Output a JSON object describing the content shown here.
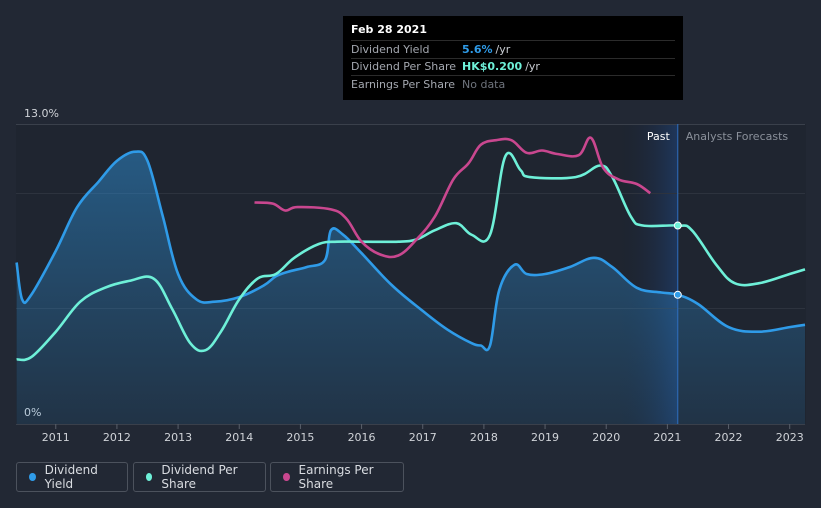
{
  "tooltip": {
    "date": "Feb 28 2021",
    "rows": [
      {
        "label": "Dividend Yield",
        "value": "5.6%",
        "unit": "/yr",
        "color": "#2f9be8"
      },
      {
        "label": "Dividend Per Share",
        "value": "HK$0.200",
        "unit": "/yr",
        "color": "#6ef0d8"
      },
      {
        "label": "Earnings Per Share",
        "value": "No data",
        "unit": "",
        "color": "#6f747d"
      }
    ]
  },
  "legend": [
    {
      "label": "Dividend Yield",
      "color": "#2f9be8"
    },
    {
      "label": "Dividend Per Share",
      "color": "#6ef0d8"
    },
    {
      "label": "Earnings Per Share",
      "color": "#c9478f"
    }
  ],
  "chart_data": {
    "type": "line",
    "y_top_label": "13.0%",
    "y_bottom_label": "0%",
    "ylim": [
      0,
      13
    ],
    "xlim": [
      2010.35,
      2023.25
    ],
    "x_ticks": [
      "2011",
      "2012",
      "2013",
      "2014",
      "2015",
      "2016",
      "2017",
      "2018",
      "2019",
      "2020",
      "2021",
      "2022",
      "2023"
    ],
    "past_label": "Past",
    "forecast_label": "Analysts Forecasts",
    "forecast_start": 2021.17,
    "series": [
      {
        "name": "Dividend Yield",
        "color": "#2f9be8",
        "filled": true,
        "points": [
          [
            2010.36,
            7.0
          ],
          [
            2010.45,
            5.4
          ],
          [
            2010.6,
            5.6
          ],
          [
            2011.0,
            7.5
          ],
          [
            2011.35,
            9.4
          ],
          [
            2011.7,
            10.5
          ],
          [
            2012.0,
            11.4
          ],
          [
            2012.3,
            11.8
          ],
          [
            2012.5,
            11.4
          ],
          [
            2012.75,
            9.0
          ],
          [
            2013.0,
            6.5
          ],
          [
            2013.3,
            5.4
          ],
          [
            2013.6,
            5.3
          ],
          [
            2014.0,
            5.5
          ],
          [
            2014.4,
            6.0
          ],
          [
            2014.6,
            6.4
          ],
          [
            2014.8,
            6.6
          ],
          [
            2015.1,
            6.8
          ],
          [
            2015.4,
            7.1
          ],
          [
            2015.5,
            8.4
          ],
          [
            2015.7,
            8.2
          ],
          [
            2016.0,
            7.4
          ],
          [
            2016.5,
            6.0
          ],
          [
            2017.0,
            4.9
          ],
          [
            2017.4,
            4.1
          ],
          [
            2017.8,
            3.5
          ],
          [
            2017.95,
            3.4
          ],
          [
            2018.1,
            3.4
          ],
          [
            2018.25,
            5.8
          ],
          [
            2018.5,
            6.9
          ],
          [
            2018.7,
            6.5
          ],
          [
            2019.0,
            6.5
          ],
          [
            2019.4,
            6.8
          ],
          [
            2019.8,
            7.2
          ],
          [
            2020.1,
            6.8
          ],
          [
            2020.5,
            5.9
          ],
          [
            2020.9,
            5.7
          ],
          [
            2021.17,
            5.6
          ],
          [
            2021.5,
            5.2
          ],
          [
            2022.0,
            4.2
          ],
          [
            2022.5,
            4.0
          ],
          [
            2023.0,
            4.2
          ],
          [
            2023.25,
            4.3
          ]
        ]
      },
      {
        "name": "Dividend Per Share",
        "color": "#6ef0d8",
        "filled": false,
        "points": [
          [
            2010.36,
            2.8
          ],
          [
            2010.6,
            2.9
          ],
          [
            2011.0,
            4.0
          ],
          [
            2011.4,
            5.3
          ],
          [
            2011.8,
            5.9
          ],
          [
            2012.2,
            6.2
          ],
          [
            2012.6,
            6.3
          ],
          [
            2012.9,
            5.0
          ],
          [
            2013.2,
            3.5
          ],
          [
            2013.45,
            3.2
          ],
          [
            2013.7,
            4.0
          ],
          [
            2014.0,
            5.4
          ],
          [
            2014.3,
            6.3
          ],
          [
            2014.6,
            6.5
          ],
          [
            2014.9,
            7.2
          ],
          [
            2015.3,
            7.8
          ],
          [
            2015.6,
            7.9
          ],
          [
            2016.0,
            7.9
          ],
          [
            2016.6,
            7.9
          ],
          [
            2016.9,
            8.0
          ],
          [
            2017.2,
            8.4
          ],
          [
            2017.55,
            8.7
          ],
          [
            2017.8,
            8.2
          ],
          [
            2018.1,
            8.2
          ],
          [
            2018.35,
            11.6
          ],
          [
            2018.6,
            11.0
          ],
          [
            2018.75,
            10.7
          ],
          [
            2019.5,
            10.7
          ],
          [
            2019.9,
            11.2
          ],
          [
            2020.1,
            10.7
          ],
          [
            2020.4,
            9.0
          ],
          [
            2020.6,
            8.6
          ],
          [
            2021.17,
            8.6
          ],
          [
            2021.4,
            8.4
          ],
          [
            2021.8,
            6.9
          ],
          [
            2022.1,
            6.1
          ],
          [
            2022.5,
            6.1
          ],
          [
            2023.0,
            6.5
          ],
          [
            2023.25,
            6.7
          ]
        ]
      },
      {
        "name": "Earnings Per Share",
        "color": "#c9478f",
        "filled": false,
        "points": [
          [
            2014.25,
            9.6
          ],
          [
            2014.55,
            9.55
          ],
          [
            2014.75,
            9.25
          ],
          [
            2014.95,
            9.4
          ],
          [
            2015.5,
            9.3
          ],
          [
            2015.75,
            8.9
          ],
          [
            2016.0,
            7.9
          ],
          [
            2016.3,
            7.35
          ],
          [
            2016.6,
            7.3
          ],
          [
            2016.9,
            8.0
          ],
          [
            2017.2,
            9.0
          ],
          [
            2017.5,
            10.6
          ],
          [
            2017.75,
            11.3
          ],
          [
            2017.95,
            12.1
          ],
          [
            2018.2,
            12.3
          ],
          [
            2018.45,
            12.3
          ],
          [
            2018.7,
            11.75
          ],
          [
            2018.95,
            11.85
          ],
          [
            2019.2,
            11.7
          ],
          [
            2019.55,
            11.65
          ],
          [
            2019.75,
            12.4
          ],
          [
            2019.95,
            11.1
          ],
          [
            2020.2,
            10.6
          ],
          [
            2020.5,
            10.4
          ],
          [
            2020.72,
            10.0
          ]
        ]
      }
    ],
    "highlight_points": [
      {
        "series": "Dividend Yield",
        "x": 2021.17,
        "y": 5.6
      },
      {
        "series": "Dividend Per Share",
        "x": 2021.17,
        "y": 8.6
      }
    ]
  }
}
